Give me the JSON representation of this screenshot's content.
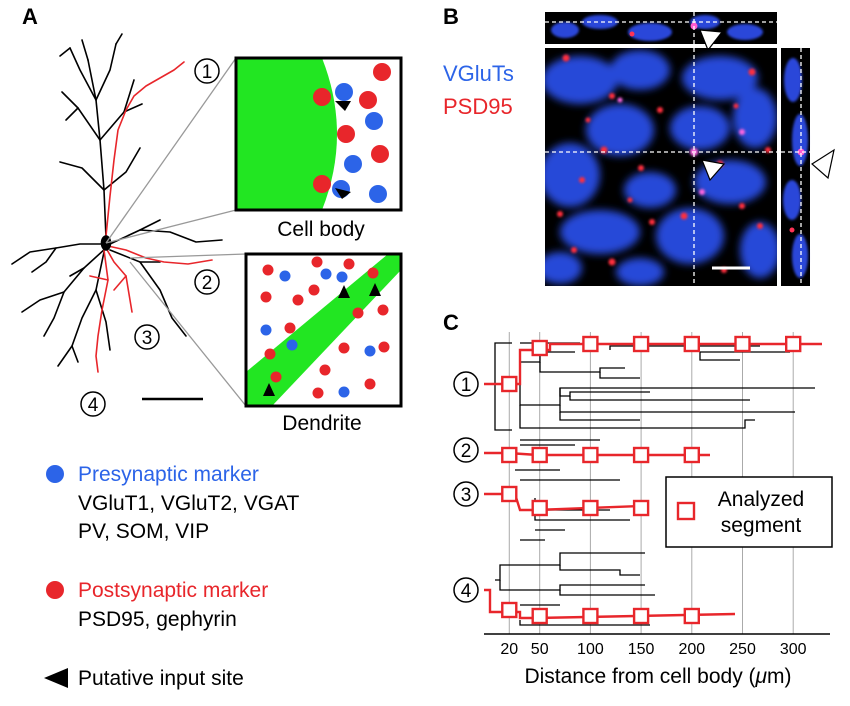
{
  "panels": {
    "a": "A",
    "b": "B",
    "c": "C"
  },
  "colors": {
    "red": "#e8262b",
    "blue": "#2c64e8",
    "green": "#22e622",
    "black": "#000000",
    "grid": "#aaaaaa"
  },
  "panel_a": {
    "branch_numbers": [
      "①",
      "②",
      "③",
      "④"
    ],
    "cell_body_label": "Cell body",
    "dendrite_label": "Dendrite"
  },
  "panel_b": {
    "stain_1": "VGluTs",
    "stain_2": "PSD95"
  },
  "legend": {
    "presynaptic_title": "Presynaptic marker",
    "presynaptic_line_1": "VGluT1, VGluT2, VGAT",
    "presynaptic_line_2": "PV, SOM, VIP",
    "postsynaptic_title": "Postsynaptic marker",
    "postsynaptic_line_1": "PSD95, gephyrin",
    "input_site": "Putative input site"
  },
  "chart_data": {
    "type": "dendrogram",
    "xlabel": "Distance from cell body (μm)",
    "xlabel_main": "Distance from cell body (",
    "xlabel_unit": "μ",
    "xlabel_end": "m)",
    "x_ticks": [
      20,
      50,
      100,
      150,
      200,
      250,
      300
    ],
    "tick_labels": [
      "20",
      "50",
      "100",
      "150",
      "200",
      "250",
      "300"
    ],
    "legend": "Analyzed segment",
    "legend_line_1": "Analyzed",
    "legend_line_2": "segment",
    "branches": [
      {
        "name": "①",
        "analyzed_segments_at": [
          20,
          50,
          100,
          150,
          200,
          250,
          300
        ]
      },
      {
        "name": "②",
        "analyzed_segments_at": [
          20,
          50,
          100,
          150,
          200
        ]
      },
      {
        "name": "③",
        "analyzed_segments_at": [
          20,
          50,
          100,
          150
        ]
      },
      {
        "name": "④",
        "analyzed_segments_at": [
          20,
          50,
          100,
          150,
          200
        ]
      }
    ]
  }
}
